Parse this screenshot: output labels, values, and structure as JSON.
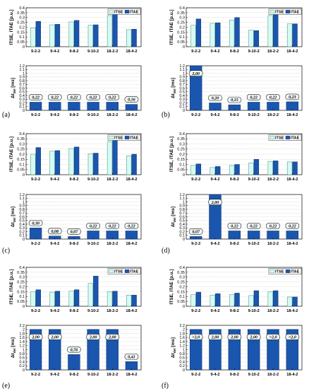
{
  "colors": {
    "itse_fill": "#d6fbf3",
    "itse_edge": "#3a8c80",
    "itae_fill": "#1a56ad",
    "itae_edge": "#0d3070",
    "dt_fill": "#1a56ad",
    "label_box": "#eef5f3",
    "grid": "#b8b8b8"
  },
  "legend": [
    "ITSE",
    "ITAE"
  ],
  "chart_data": [
    {
      "panel": "(a)",
      "type": "bar",
      "top": {
        "ylabel": "ITSE, ITAE [p.u.]",
        "ylim": [
          0,
          0.4
        ],
        "yticks": [
          "0",
          "0.05",
          "0.1",
          "0.15",
          "0.2",
          "0.25",
          "0.3",
          "0.35",
          "0.4"
        ],
        "categories": [
          "9-2-2",
          "9-4-2",
          "9-8-2",
          "9-10-2",
          "18-2-2",
          "18-4-2"
        ],
        "series": [
          {
            "name": "ITSE",
            "values": [
              0.195,
              0.225,
              0.255,
              0.22,
              0.32,
              0.175
            ]
          },
          {
            "name": "ITAE",
            "values": [
              0.26,
              0.23,
              0.27,
              0.225,
              0.33,
              0.18
            ]
          }
        ]
      },
      "bottom": {
        "ylabel_main": "Δt",
        "ylabel_sub": "del",
        "ylabel_unit": " [ms]",
        "ylim": [
          0,
          1.2
        ],
        "yticks": [
          "0",
          "0.1",
          "0.2",
          "0.3",
          "0.4",
          "0.5",
          "0.6",
          "0.7",
          "0.8",
          "0.9",
          "1",
          "1.1",
          "1.2"
        ],
        "categories": [
          "9-2-2",
          "9-4-2",
          "9-8-2",
          "9-10-2",
          "18-2-2",
          "18-4-2"
        ],
        "values": [
          0.22,
          0.22,
          0.22,
          0.22,
          0.22,
          0.16
        ],
        "labels": [
          "0,22",
          "0,22",
          "0,22",
          "0,22",
          "0,22",
          "0,16"
        ]
      }
    },
    {
      "panel": "(b)",
      "type": "bar",
      "top": {
        "ylabel": "ITSE, ITAE [p.u.]",
        "ylim": [
          0,
          0.4
        ],
        "yticks": [
          "0",
          "0.05",
          "0.1",
          "0.15",
          "0.2",
          "0.25",
          "0.3",
          "0.35",
          "0.4"
        ],
        "categories": [
          "9-2-2",
          "9-4-2",
          "9-8-2",
          "9-10-2",
          "18-2-2",
          "18-4-2"
        ],
        "series": [
          {
            "name": "ITSE",
            "values": [
              0.22,
              0.24,
              0.275,
              0.17,
              0.32,
              0.235
            ]
          },
          {
            "name": "ITAE",
            "values": [
              0.285,
              0.245,
              0.3,
              0.165,
              0.335,
              0.235
            ]
          }
        ]
      },
      "bottom": {
        "ylabel_main": "Δt",
        "ylabel_sub": "del",
        "ylabel_unit": " [ms]",
        "ylim": [
          0,
          1.2
        ],
        "yticks": [
          "0",
          "0.1",
          "0.2",
          "0.3",
          "0.4",
          "0.5",
          "0.6",
          "0.7",
          "0.8",
          "0.9",
          "1",
          "1.1",
          "1.2"
        ],
        "categories": [
          "9-2-2",
          "9-4-2",
          "9-8-2",
          "9-10-2",
          "18-2-2",
          "18-4-2"
        ],
        "values": [
          2.0,
          0.2,
          0.15,
          0.22,
          0.22,
          0.23
        ],
        "labels": [
          "2,00",
          "0,20",
          "0,15",
          "0,22",
          "0,22",
          "0,23"
        ]
      }
    },
    {
      "panel": "(c)",
      "type": "bar",
      "top": {
        "ylabel": "ITSE, ITAE [p.u.]",
        "ylim": [
          0,
          0.4
        ],
        "yticks": [
          "0",
          "0.05",
          "0.1",
          "0.15",
          "0.2",
          "0.25",
          "0.3",
          "0.35",
          "0.4"
        ],
        "categories": [
          "9-2-2",
          "9-4-2",
          "9-8-2",
          "9-10-2",
          "18-2-2",
          "18-4-2"
        ],
        "series": [
          {
            "name": "ITSE",
            "values": [
              0.2,
              0.23,
              0.255,
              0.205,
              0.32,
              0.185
            ]
          },
          {
            "name": "ITAE",
            "values": [
              0.265,
              0.235,
              0.27,
              0.21,
              0.335,
              0.2
            ]
          }
        ]
      },
      "bottom": {
        "ylabel_main": "Δt",
        "ylabel_sub": "del",
        "ylabel_unit": " [ms]",
        "ylim": [
          0,
          1.2
        ],
        "yticks": [
          "0",
          "0.1",
          "0.2",
          "0.3",
          "0.4",
          "0.5",
          "0.6",
          "0.7",
          "0.8",
          "0.9",
          "1",
          "1.1",
          "1.2"
        ],
        "categories": [
          "9-2-2",
          "9-4-2",
          "9-8-2",
          "9-10-2",
          "18-2-2",
          "18-4-2"
        ],
        "values": [
          0.3,
          0.08,
          0.07,
          0.22,
          0.22,
          0.22
        ],
        "labels": [
          "0,30",
          "0,08",
          "0,07",
          "0,22",
          "0,22",
          "0,22"
        ]
      }
    },
    {
      "panel": "(d)",
      "type": "bar",
      "top": {
        "ylabel": "ITSE, ITAE [p.u.]",
        "ylim": [
          0,
          0.4
        ],
        "yticks": [
          "0",
          "0.05",
          "0.1",
          "0.15",
          "0.2",
          "0.25",
          "0.3",
          "0.35",
          "0.4"
        ],
        "categories": [
          "9-2-2",
          "9-4-2",
          "9-8-2",
          "9-10-2",
          "18-2-2",
          "18-4-2"
        ],
        "series": [
          {
            "name": "ITSE",
            "values": [
              0.09,
              0.07,
              0.09,
              0.115,
              0.13,
              0.125
            ]
          },
          {
            "name": "ITAE",
            "values": [
              0.105,
              0.08,
              0.1,
              0.15,
              0.135,
              0.125
            ]
          }
        ]
      },
      "bottom": {
        "ylabel_main": "Δt",
        "ylabel_sub": "del",
        "ylabel_unit": " [ms]",
        "ylim": [
          0,
          1.2
        ],
        "yticks": [
          "0",
          "0.1",
          "0.2",
          "0.3",
          "0.4",
          "0.5",
          "0.6",
          "0.7",
          "0.8",
          "0.9",
          "1",
          "1.1",
          "1.2"
        ],
        "categories": [
          "9-2-2",
          "9-4-2",
          "9-8-2",
          "9-10-2",
          "18-2-2",
          "18-4-2"
        ],
        "values": [
          0.07,
          2.0,
          0.22,
          0.22,
          0.22,
          0.22
        ],
        "labels": [
          "0,07",
          "2,00",
          "0,22",
          "0,22",
          "0,22",
          "0,22"
        ]
      }
    },
    {
      "panel": "(e)",
      "type": "bar",
      "top": {
        "ylabel": "ITSE, ITAE [p.u.]",
        "ylim": [
          0,
          0.4
        ],
        "yticks": [
          "0",
          "0.05",
          "0.1",
          "0.15",
          "0.2",
          "0.25",
          "0.3",
          "0.35",
          "0.4"
        ],
        "categories": [
          "9-2-2",
          "9-4-2",
          "9-8-2",
          "9-10-2",
          "18-2-2",
          "18-4-2"
        ],
        "series": [
          {
            "name": "ITSE",
            "values": [
              0.15,
              0.145,
              0.155,
              0.235,
              0.15,
              0.115
            ]
          },
          {
            "name": "ITAE",
            "values": [
              0.17,
              0.155,
              0.17,
              0.31,
              0.155,
              0.115
            ]
          }
        ]
      },
      "bottom": {
        "ylabel_main": "Δt",
        "ylabel_sub": "del",
        "ylabel_unit": " [ms]",
        "ylim": [
          0,
          2.2
        ],
        "yticks": [
          "0",
          "0.2",
          "0.4",
          "0.6",
          "0.8",
          "1",
          "1.2",
          "1.4",
          "1.6",
          "1.8",
          "2",
          "2.2"
        ],
        "categories": [
          "9-2-2",
          "9-4-2",
          "9-8-2",
          "9-10-2",
          "18-2-2",
          "18-4-2"
        ],
        "values": [
          2.0,
          2.0,
          0.76,
          2.0,
          2.0,
          0.41
        ],
        "labels": [
          "2,00",
          "2,00",
          "0,76",
          "2,00",
          "2,00",
          "0,41"
        ]
      }
    },
    {
      "panel": "(f)",
      "type": "bar",
      "top": {
        "ylabel": "ITSE, ITAE [p.u.]",
        "ylim": [
          0,
          0.4
        ],
        "yticks": [
          "0",
          "0.05",
          "0.1",
          "0.15",
          "0.2",
          "0.25",
          "0.3",
          "0.35",
          "0.4"
        ],
        "categories": [
          "9-2-2",
          "9-4-2",
          "9-8-2",
          "9-10-2",
          "18-2-2",
          "18-4-2"
        ],
        "series": [
          {
            "name": "ITSE",
            "values": [
              0.12,
              0.115,
              0.12,
              0.11,
              0.15,
              0.095
            ]
          },
          {
            "name": "ITAE",
            "values": [
              0.145,
              0.13,
              0.135,
              0.16,
              0.16,
              0.095
            ]
          }
        ]
      },
      "bottom": {
        "ylabel_main": "Δt",
        "ylabel_sub": "del",
        "ylabel_unit": " [ms]",
        "ylim": [
          0,
          2.2
        ],
        "yticks": [
          "0",
          "0.2",
          "0.4",
          "0.6",
          "0.8",
          "1",
          "1.2",
          "1.4",
          "1.6",
          "1.8",
          "2",
          "2.2"
        ],
        "categories": [
          "9-2-2",
          "9-4-2",
          "9-8-2",
          "9-10-2",
          "18-2-2",
          "18-4-2"
        ],
        "values": [
          2.0,
          2.0,
          2.0,
          2.0,
          2.0,
          2.0
        ],
        "labels": [
          ">2,0",
          "2,00",
          "2,00",
          "2,00",
          ">2,0",
          ">2,0"
        ]
      }
    }
  ]
}
